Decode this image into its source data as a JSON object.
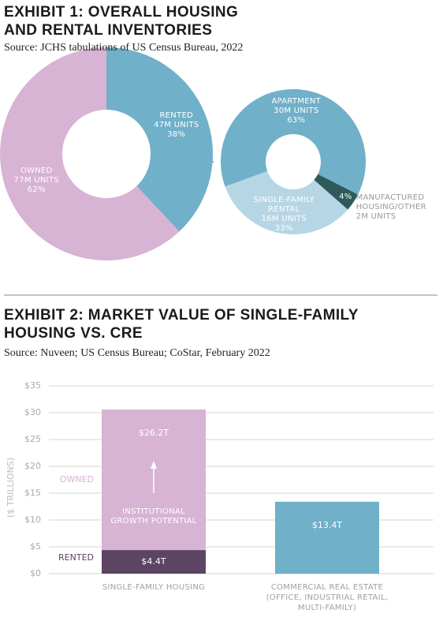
{
  "chart_data": [
    {
      "type": "pie",
      "title": "EXHIBIT 1: OVERALL HOUSING AND RENTAL INVENTORIES",
      "subtitle": "Source: JCHS tabulations of US Census Bureau, 2022",
      "categories": [
        "RENTED",
        "OWNED"
      ],
      "units": [
        "47M UNITS",
        "77M UNITS"
      ],
      "values": [
        38,
        62
      ],
      "value_labels": [
        "38%",
        "62%"
      ],
      "colors": [
        "#70b0c9",
        "#d7b3d4"
      ]
    },
    {
      "type": "pie",
      "categories": [
        "APARTMENT",
        "MANUFACTURED HOUSING/OTHER",
        "SINGLE-FAMILY RENTAL"
      ],
      "units": [
        "30M UNITS",
        "2M UNITS",
        "16M UNITS"
      ],
      "values": [
        63,
        4,
        33
      ],
      "value_labels": [
        "63%",
        "4%",
        "33%"
      ],
      "colors": [
        "#70b0c9",
        "#2e5a5a",
        "#b6d6e5"
      ]
    },
    {
      "type": "bar",
      "stacked": true,
      "title": "EXHIBIT 2: MARKET VALUE OF SINGLE-FAMILY HOUSING VS. CRE",
      "subtitle": "Source: Nuveen; US Census Bureau; CoStar, February 2022",
      "ylabel": "($ TRILLIONS)",
      "annotation": "INSTITUTIONAL GROWTH POTENTIAL",
      "categories": [
        "SINGLE-FAMILY HOUSING",
        "COMMERCIAL REAL ESTATE (OFFICE, INDUSTRIAL RETAIL, MULTI-FAMILY)"
      ],
      "series": [
        {
          "name": "RENTED",
          "color": "#5c4463",
          "values": [
            4.4,
            null
          ],
          "value_labels": [
            "$4.4T",
            null
          ]
        },
        {
          "name": "OWNED",
          "color": "#d7b3d4",
          "values": [
            26.2,
            null
          ],
          "value_labels": [
            "$26.2T",
            null
          ]
        },
        {
          "color": "#70b0c9",
          "values": [
            null,
            13.4
          ],
          "value_labels": [
            null,
            "$13.4T"
          ]
        }
      ],
      "ylim": [
        0,
        35
      ],
      "yticks": [
        {
          "value": 0,
          "label": "$0"
        },
        {
          "value": 5,
          "label": "$5"
        },
        {
          "value": 10,
          "label": "$10"
        },
        {
          "value": 15,
          "label": "$15"
        },
        {
          "value": 20,
          "label": "$20"
        },
        {
          "value": 25,
          "label": "$25"
        },
        {
          "value": 30,
          "label": "$30"
        },
        {
          "value": 35,
          "label": "$35"
        }
      ],
      "grid": true
    }
  ]
}
